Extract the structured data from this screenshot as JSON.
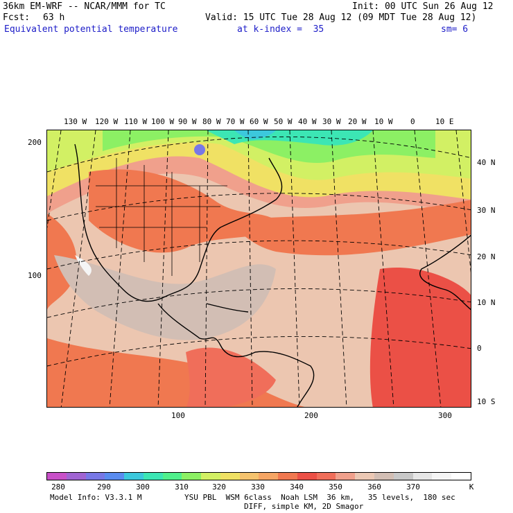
{
  "header": {
    "model": "36km EM-WRF -- NCAR/MMM for TC",
    "init": "Init: 00 UTC Sun 26 Aug 12",
    "fcst_label": "Fcst:",
    "fcst_value": "63 h",
    "valid": "Valid: 15 UTC Tue 28 Aug 12 (09 MDT Tue 28 Aug 12)",
    "field": "Equivalent potential temperature",
    "level": "at k-index =  35",
    "smooth": "sm= 6"
  },
  "map": {
    "lon_labels_top": [
      "130 W",
      "120 W",
      "110 W",
      "100 W",
      "90 W",
      "80 W",
      "70 W",
      "60 W",
      "50 W",
      "40 W",
      "30 W",
      "20 W",
      "10 W",
      "0",
      "10 E"
    ],
    "lat_labels_right": [
      "40 N",
      "30 N",
      "20 N",
      "10 N",
      "0",
      "10 S"
    ],
    "grid_y_labels_left": [
      "200",
      "100"
    ],
    "grid_x_labels_bottom": [
      "100",
      "200",
      "300"
    ]
  },
  "colorbar": {
    "colors": [
      "#c850c8",
      "#a064d2",
      "#7878e6",
      "#5a8cf0",
      "#3cc8dc",
      "#3ce6b4",
      "#50f08c",
      "#8cf064",
      "#d2f064",
      "#f0e164",
      "#f5c36e",
      "#f5a564",
      "#f07850",
      "#eb5046",
      "#f06e5a",
      "#f0a08c",
      "#ebc8b4",
      "#d2beb4",
      "#c8c8c8",
      "#e6e6e6",
      "#f5f5f5",
      "#ffffff"
    ],
    "labels": [
      "280",
      "290",
      "300",
      "310",
      "320",
      "330",
      "340",
      "350",
      "360",
      "370"
    ],
    "unit": "K"
  },
  "footer": {
    "line1_left": "Model Info: V3.3.1 M",
    "line1_right": "YSU PBL  WSM 6class  Noah LSM  36 km,   35 levels,  180 sec",
    "line2": "DIFF, simple KM, 2D Smagor"
  }
}
